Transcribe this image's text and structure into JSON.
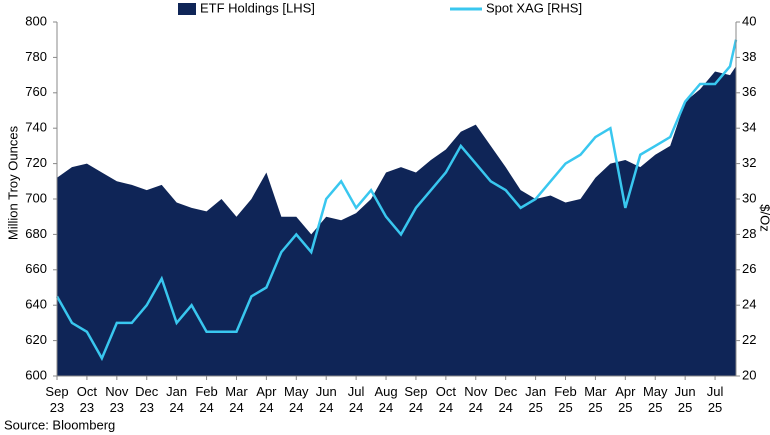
{
  "chart_data": {
    "type": "combo",
    "source": "Source: Bloomberg",
    "ylabel": "Million Troy  Ounces",
    "y2label": "$/Oz",
    "x": [
      0,
      0.5,
      1,
      1.5,
      2,
      2.5,
      3,
      3.5,
      4,
      4.5,
      5,
      5.5,
      6,
      6.5,
      7,
      7.5,
      8,
      8.5,
      9,
      9.5,
      10,
      10.5,
      11,
      11.5,
      12,
      12.5,
      13,
      13.5,
      14,
      14.5,
      15,
      15.5,
      16,
      16.5,
      17,
      17.5,
      18,
      18.5,
      19,
      19.5,
      20,
      20.5,
      21,
      21.5,
      22,
      22.5,
      22.7
    ],
    "series": [
      {
        "name": "ETF Holdings [LHS]",
        "type": "area",
        "color": "#0f2557",
        "values": [
          712,
          718,
          720,
          715,
          710,
          708,
          705,
          708,
          698,
          695,
          693,
          700,
          690,
          700,
          715,
          690,
          690,
          680,
          690,
          688,
          692,
          700,
          715,
          718,
          715,
          722,
          728,
          738,
          742,
          730,
          718,
          705,
          700,
          702,
          698,
          700,
          712,
          720,
          722,
          718,
          725,
          730,
          755,
          762,
          772,
          770,
          775
        ]
      },
      {
        "name": "Spot XAG [RHS]",
        "type": "line",
        "axis": "y2",
        "color": "#39c7ef",
        "values": [
          24.5,
          23,
          22.5,
          21,
          23,
          23,
          24,
          25.5,
          23,
          24,
          22.5,
          22.5,
          22.5,
          24.5,
          25,
          27,
          28,
          27,
          30,
          31,
          29.5,
          30.5,
          29,
          28,
          29.5,
          30.5,
          31.5,
          33,
          32,
          31,
          30.5,
          29.5,
          30,
          31,
          32,
          32.5,
          33.5,
          34,
          29.5,
          32.5,
          33,
          33.5,
          35.5,
          36.5,
          36.5,
          37.5,
          39
        ]
      }
    ],
    "xlim": [
      0,
      22.7
    ],
    "xticks": [
      {
        "value": 0,
        "label": "Sep\n23"
      },
      {
        "value": 1,
        "label": "Oct\n23"
      },
      {
        "value": 2,
        "label": "Nov\n23"
      },
      {
        "value": 3,
        "label": "Dec\n23"
      },
      {
        "value": 4,
        "label": "Jan\n24"
      },
      {
        "value": 5,
        "label": "Feb\n24"
      },
      {
        "value": 6,
        "label": "Mar\n24"
      },
      {
        "value": 7,
        "label": "Apr\n24"
      },
      {
        "value": 8,
        "label": "May\n24"
      },
      {
        "value": 9,
        "label": "Jun\n24"
      },
      {
        "value": 10,
        "label": "Jul\n24"
      },
      {
        "value": 11,
        "label": "Aug\n24"
      },
      {
        "value": 12,
        "label": "Sep\n24"
      },
      {
        "value": 13,
        "label": "Oct\n24"
      },
      {
        "value": 14,
        "label": "Nov\n24"
      },
      {
        "value": 15,
        "label": "Dec\n24"
      },
      {
        "value": 16,
        "label": "Jan\n25"
      },
      {
        "value": 17,
        "label": "Feb\n25"
      },
      {
        "value": 18,
        "label": "Mar\n25"
      },
      {
        "value": 19,
        "label": "Apr\n25"
      },
      {
        "value": 20,
        "label": "May\n25"
      },
      {
        "value": 21,
        "label": "Jun\n25"
      },
      {
        "value": 22,
        "label": "Jul\n25"
      }
    ],
    "ylim": [
      600,
      800
    ],
    "yticks": [
      600,
      620,
      640,
      660,
      680,
      700,
      720,
      740,
      760,
      780,
      800
    ],
    "y2lim": [
      20,
      40
    ],
    "y2ticks": [
      20,
      22,
      24,
      26,
      28,
      30,
      32,
      34,
      36,
      38,
      40
    ]
  }
}
